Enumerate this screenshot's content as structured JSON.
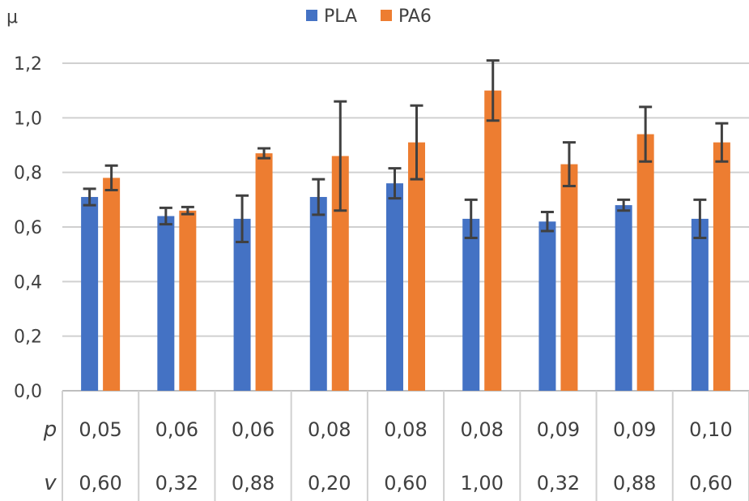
{
  "chart_data": {
    "type": "bar",
    "ylabel": "μ",
    "ylim": [
      0,
      1.2
    ],
    "yticks": [
      "0,0",
      "0,2",
      "0,4",
      "0,6",
      "0,8",
      "1,0",
      "1,2"
    ],
    "grid": true,
    "legend_position": "top-center",
    "table_rows": [
      {
        "label": "p",
        "values": [
          "0,05",
          "0,06",
          "0,06",
          "0,08",
          "0,08",
          "0,08",
          "0,09",
          "0,09",
          "0,10"
        ]
      },
      {
        "label": "v",
        "values": [
          "0,60",
          "0,32",
          "0,88",
          "0,20",
          "0,60",
          "1,00",
          "0,32",
          "0,88",
          "0,60"
        ]
      }
    ],
    "series": [
      {
        "name": "PLA",
        "color": "#4472C4",
        "values": [
          0.71,
          0.64,
          0.63,
          0.71,
          0.76,
          0.63,
          0.62,
          0.68,
          0.63
        ],
        "errors": [
          0.03,
          0.03,
          0.085,
          0.065,
          0.055,
          0.07,
          0.035,
          0.02,
          0.07
        ]
      },
      {
        "name": "PA6",
        "color": "#ED7D31",
        "values": [
          0.78,
          0.66,
          0.87,
          0.86,
          0.91,
          1.1,
          0.83,
          0.94,
          0.91
        ],
        "errors": [
          0.045,
          0.013,
          0.018,
          0.2,
          0.135,
          0.11,
          0.08,
          0.1,
          0.07
        ]
      }
    ]
  }
}
